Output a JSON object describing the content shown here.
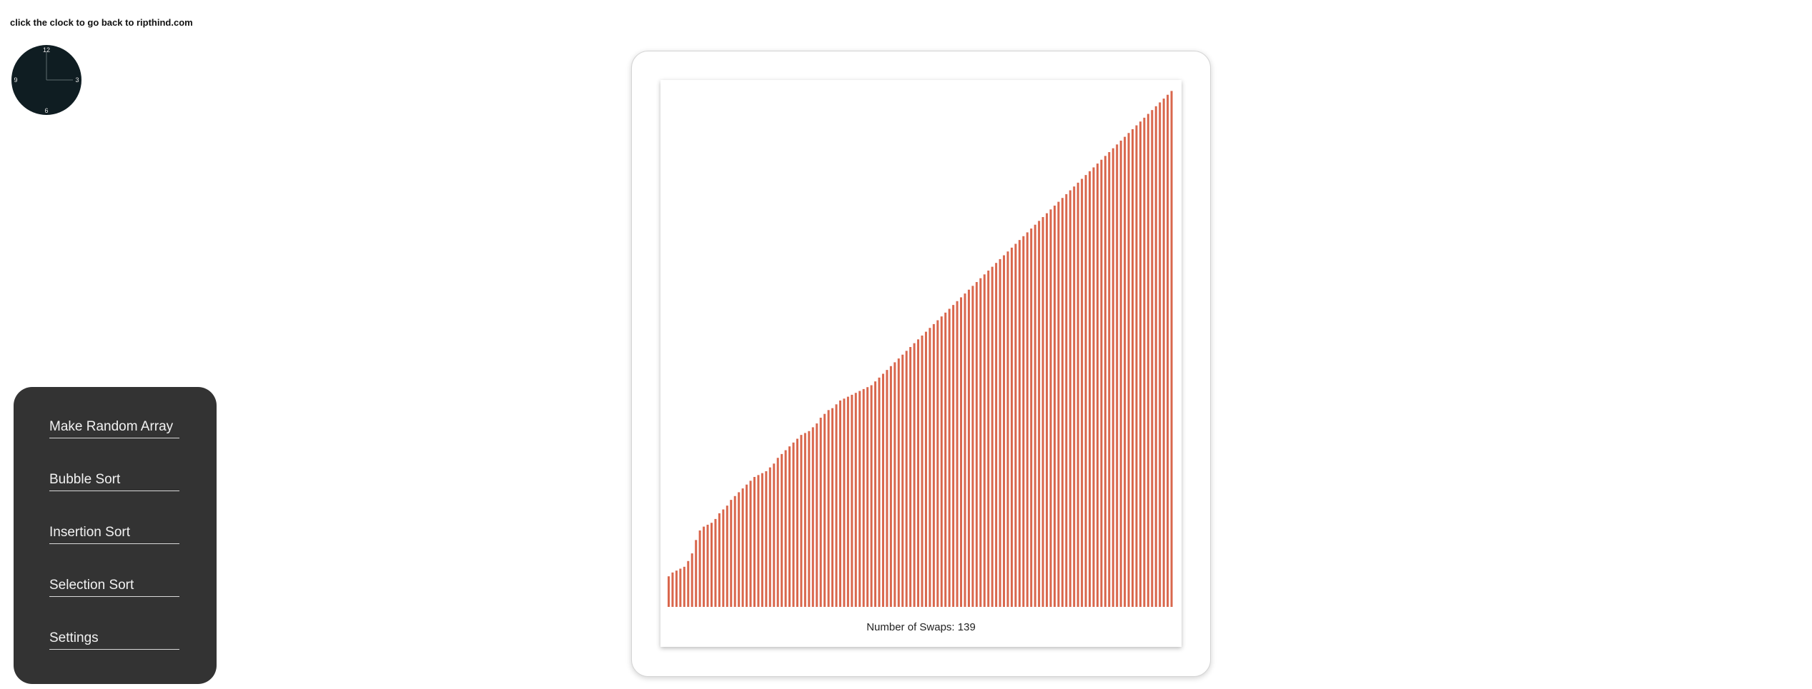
{
  "header": {
    "link_text": "click the clock to go back to ripthind.com"
  },
  "clock": {
    "numbers": [
      "12",
      "3",
      "6",
      "9"
    ],
    "face_color": "#0f1d22"
  },
  "menu": {
    "items": [
      {
        "label": "Make Random Array"
      },
      {
        "label": "Bubble Sort"
      },
      {
        "label": "Insertion Sort"
      },
      {
        "label": "Selection Sort"
      },
      {
        "label": "Settings"
      }
    ]
  },
  "visualizer": {
    "swap_label": "Number of Swaps:",
    "swap_count": "139"
  },
  "chart_data": {
    "type": "bar",
    "bar_color": "#d9674d",
    "sorted": true,
    "count": 130,
    "values": [
      16,
      18,
      19,
      20,
      21,
      24,
      28,
      35,
      40,
      42,
      43,
      44,
      46,
      49,
      51,
      53,
      56,
      58,
      60,
      62,
      64,
      66,
      68,
      69,
      70,
      71,
      73,
      75,
      78,
      80,
      82,
      84,
      86,
      88,
      90,
      91,
      92,
      94,
      96,
      99,
      101,
      103,
      104,
      106,
      108,
      109,
      110,
      111,
      112,
      113,
      114,
      115,
      116,
      118,
      120,
      122,
      124,
      126,
      128,
      130,
      132,
      134,
      136,
      138,
      140,
      142,
      144,
      146,
      148,
      150,
      152,
      154,
      156,
      158,
      160,
      162,
      164,
      166,
      168,
      170,
      172,
      174,
      176,
      178,
      180,
      182,
      184,
      186,
      188,
      190,
      192,
      194,
      196,
      198,
      200,
      202,
      204,
      206,
      208,
      210,
      212,
      214,
      216,
      218,
      220,
      222,
      224,
      226,
      228,
      230,
      232,
      234,
      236,
      238,
      240,
      242,
      244,
      246,
      248,
      250,
      252,
      254,
      256,
      258,
      260,
      262,
      264,
      266,
      268,
      270
    ],
    "ylim": [
      0,
      275
    ]
  }
}
